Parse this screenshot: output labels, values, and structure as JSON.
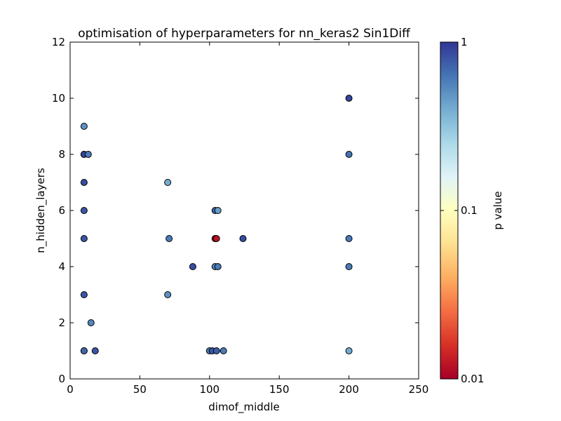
{
  "chart_data": {
    "type": "scatter",
    "title": "optimisation of hyperparameters for nn_keras2 Sin1Diff",
    "xlabel": "dimof_middle",
    "ylabel": "n_hidden_layers",
    "xlim": [
      0,
      250
    ],
    "ylim": [
      0,
      12
    ],
    "xticks": [
      0,
      50,
      100,
      150,
      200,
      250
    ],
    "yticks": [
      0,
      2,
      4,
      6,
      8,
      10,
      12
    ],
    "grid": false,
    "colorbar": {
      "label": "p value",
      "scale": "log",
      "range": [
        0.01,
        1
      ],
      "ticks": [
        {
          "value": 0.01,
          "label": "0.01"
        },
        {
          "value": 0.1,
          "label": "0.1"
        },
        {
          "value": 1,
          "label": "1"
        }
      ],
      "colormap": "RdYlBu"
    },
    "points": [
      {
        "x": 10,
        "y": 9,
        "p": 0.5
      },
      {
        "x": 10,
        "y": 8,
        "p": 0.8
      },
      {
        "x": 10,
        "y": 8,
        "p": 0.9
      },
      {
        "x": 13,
        "y": 8,
        "p": 0.6
      },
      {
        "x": 10,
        "y": 7,
        "p": 0.85
      },
      {
        "x": 10,
        "y": 6,
        "p": 0.8
      },
      {
        "x": 10,
        "y": 5,
        "p": 0.8
      },
      {
        "x": 10,
        "y": 3,
        "p": 0.8
      },
      {
        "x": 15,
        "y": 2,
        "p": 0.55
      },
      {
        "x": 10,
        "y": 1,
        "p": 0.85
      },
      {
        "x": 10,
        "y": 1,
        "p": 0.7
      },
      {
        "x": 18,
        "y": 1,
        "p": 0.8
      },
      {
        "x": 70,
        "y": 7,
        "p": 0.4
      },
      {
        "x": 71,
        "y": 5,
        "p": 0.6
      },
      {
        "x": 70,
        "y": 3,
        "p": 0.5
      },
      {
        "x": 88,
        "y": 4,
        "p": 0.85
      },
      {
        "x": 104,
        "y": 6,
        "p": 0.7
      },
      {
        "x": 106,
        "y": 6,
        "p": 0.45
      },
      {
        "x": 104,
        "y": 5,
        "p": 0.01
      },
      {
        "x": 105,
        "y": 5,
        "p": 0.012
      },
      {
        "x": 104,
        "y": 4,
        "p": 0.55
      },
      {
        "x": 106,
        "y": 4,
        "p": 0.6
      },
      {
        "x": 100,
        "y": 1,
        "p": 0.6
      },
      {
        "x": 102,
        "y": 1,
        "p": 0.8
      },
      {
        "x": 105,
        "y": 1,
        "p": 0.75
      },
      {
        "x": 110,
        "y": 1,
        "p": 0.6
      },
      {
        "x": 124,
        "y": 5,
        "p": 0.85
      },
      {
        "x": 200,
        "y": 10,
        "p": 0.9
      },
      {
        "x": 200,
        "y": 8,
        "p": 0.65
      },
      {
        "x": 200,
        "y": 5,
        "p": 0.6
      },
      {
        "x": 200,
        "y": 4,
        "p": 0.6
      },
      {
        "x": 200,
        "y": 1,
        "p": 0.4
      }
    ]
  }
}
